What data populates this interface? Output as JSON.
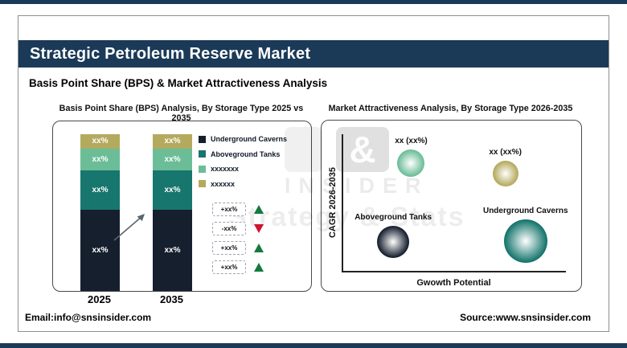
{
  "header": {
    "title": "Strategic Petroleum Reserve Market",
    "subtitle": "Basis Point Share (BPS) & Market Attractiveness Analysis"
  },
  "footer": {
    "email": "Email:info@snsinsider.com",
    "source": "Source:www.snsinsider.com"
  },
  "watermark": {
    "ampersand": "&",
    "insider": "INSIDER",
    "tagline": "Strategy & Stats"
  },
  "colors": {
    "brand_navy": "#1b3a58",
    "series_underground_caverns": "#161f2e",
    "series_aboveground_tanks": "#17766e",
    "series_third": "#6bbd98",
    "series_fourth": "#b4aa5e",
    "positive_green": "#157a3e",
    "negative_red": "#cf1330"
  },
  "chart_data": [
    {
      "type": "bar",
      "variant": "stacked-100pct-column",
      "title": "Basis Point Share (BPS) Analysis, By Storage Type 2025 vs 2035",
      "categories": [
        "2025",
        "2035"
      ],
      "series": [
        {
          "name": "Underground Caverns",
          "color": "#161f2e",
          "values": [
            "xx%",
            "xx%"
          ],
          "share_pct": [
            52,
            52
          ]
        },
        {
          "name": "Aboveground Tanks",
          "color": "#17766e",
          "values": [
            "xx%",
            "xx%"
          ],
          "share_pct": [
            25,
            25
          ]
        },
        {
          "name": "xxxxxxx",
          "color": "#6bbd98",
          "values": [
            "xx%",
            "xx%"
          ],
          "share_pct": [
            14,
            14
          ]
        },
        {
          "name": "xxxxxx",
          "color": "#b4aa5e",
          "values": [
            "xx%",
            "xx%"
          ],
          "share_pct": [
            9,
            9
          ]
        }
      ],
      "legend_position": "right",
      "deltas": [
        {
          "label": "+xx%",
          "direction": "up",
          "color": "#157a3e"
        },
        {
          "label": "-xx%",
          "direction": "down",
          "color": "#cf1330"
        },
        {
          "label": "+xx%",
          "direction": "up",
          "color": "#157a3e"
        },
        {
          "label": "+xx%",
          "direction": "up",
          "color": "#157a3e"
        }
      ]
    },
    {
      "type": "scatter",
      "variant": "bubble",
      "title": "Market Attractiveness Analysis, By Storage Type 2026-2035",
      "xlabel": "Gwowth Potential",
      "ylabel": "CAGR 2026-2035",
      "xlim": [
        0,
        100
      ],
      "ylim": [
        0,
        100
      ],
      "grid": false,
      "points": [
        {
          "label": "xx (xx%)",
          "color": "#6bbd98",
          "x": 31,
          "y": 79,
          "r": 17
        },
        {
          "label": "xx (xx%)",
          "color": "#b4aa5e",
          "x": 73,
          "y": 71,
          "r": 16
        },
        {
          "label": "Aboveground Tanks",
          "color": "#161f2e",
          "x": 23,
          "y": 21,
          "r": 20
        },
        {
          "label": "Underground Caverns",
          "color": "#17766e",
          "x": 82,
          "y": 22,
          "r": 27
        }
      ]
    }
  ]
}
